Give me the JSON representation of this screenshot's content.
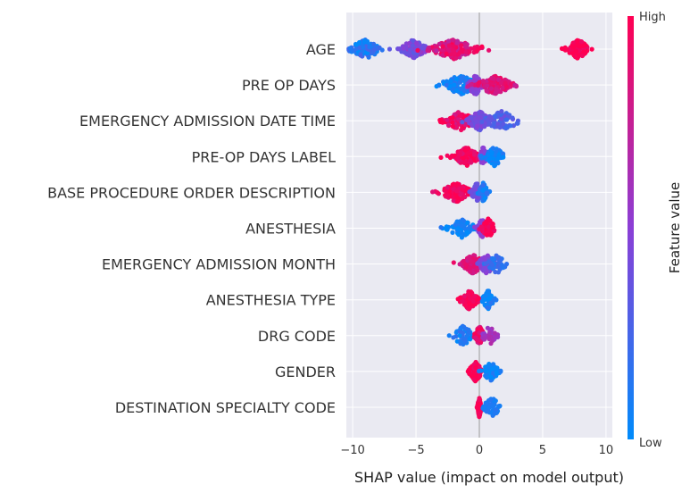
{
  "chart_data": {
    "type": "scatter",
    "subtype": "shap-beeswarm",
    "xlabel": "SHAP value (impact on model output)",
    "xlim": [
      -10.5,
      10.5
    ],
    "xticks": [
      -10,
      -5,
      0,
      5,
      10
    ],
    "grid": true,
    "colorbar": {
      "title": "Feature value",
      "high_label": "High",
      "low_label": "Low",
      "high_color": "#ff0052",
      "mid_color": "#8b3fd6",
      "low_color": "#008bfb"
    },
    "background_color": "#eaeaf2",
    "features": [
      {
        "name": "AGE",
        "clusters": [
          {
            "center": -9.0,
            "width": 1.4,
            "count": 110,
            "color": 0.12,
            "spread": 0.3
          },
          {
            "center": -5.2,
            "width": 1.2,
            "count": 110,
            "color": 0.45,
            "spread": 0.25
          },
          {
            "center": -2.0,
            "width": 2.2,
            "count": 150,
            "color": 0.85,
            "spread": 0.3
          },
          {
            "center": 0.2,
            "width": 0.6,
            "count": 2,
            "color": 1.0,
            "spread": 0.15
          },
          {
            "center": 7.8,
            "width": 1.0,
            "count": 120,
            "color": 1.0,
            "spread": 0.2
          }
        ]
      },
      {
        "name": "PRE OP DAYS",
        "clusters": [
          {
            "center": -1.5,
            "width": 1.8,
            "count": 110,
            "color": 0.05,
            "spread": 0.2
          },
          {
            "center": -0.3,
            "width": 0.8,
            "count": 80,
            "color": 0.5,
            "spread": 0.1
          },
          {
            "center": 1.2,
            "width": 1.6,
            "count": 120,
            "color": 0.85,
            "spread": 0.2
          }
        ]
      },
      {
        "name": "EMERGENCY ADMISSION DATE TIME",
        "clusters": [
          {
            "center": -1.5,
            "width": 1.6,
            "count": 100,
            "color": 0.92,
            "spread": 0.3
          },
          {
            "center": 0.0,
            "width": 1.0,
            "count": 100,
            "color": 0.4,
            "spread": 0.2
          },
          {
            "center": 1.8,
            "width": 1.6,
            "count": 60,
            "color": 0.3,
            "spread": 0.2
          }
        ]
      },
      {
        "name": "PRE-OP DAYS LABEL",
        "clusters": [
          {
            "center": -1.0,
            "width": 1.2,
            "count": 120,
            "color": 0.95,
            "spread": 0.2
          },
          {
            "center": 0.3,
            "width": 0.3,
            "count": 60,
            "color": 0.5,
            "spread": 0.1
          },
          {
            "center": 1.2,
            "width": 0.9,
            "count": 70,
            "color": 0.05,
            "spread": 0.2
          }
        ]
      },
      {
        "name": "BASE PROCEDURE ORDER DESCRIPTION",
        "clusters": [
          {
            "center": -1.8,
            "width": 1.4,
            "count": 110,
            "color": 0.95,
            "spread": 0.2
          },
          {
            "center": -0.2,
            "width": 0.5,
            "count": 70,
            "color": 0.4,
            "spread": 0.1
          },
          {
            "center": 0.3,
            "width": 0.4,
            "count": 50,
            "color": 0.1,
            "spread": 0.2
          }
        ]
      },
      {
        "name": "ANESTHESIA",
        "clusters": [
          {
            "center": -1.4,
            "width": 1.4,
            "count": 70,
            "color": 0.05,
            "spread": 0.2
          },
          {
            "center": 0.2,
            "width": 0.4,
            "count": 60,
            "color": 0.5,
            "spread": 0.1
          },
          {
            "center": 0.7,
            "width": 0.6,
            "count": 80,
            "color": 0.98,
            "spread": 0.2
          }
        ]
      },
      {
        "name": "EMERGENCY ADMISSION MONTH",
        "clusters": [
          {
            "center": -0.5,
            "width": 1.0,
            "count": 140,
            "color": 0.85,
            "spread": 0.2
          },
          {
            "center": 0.6,
            "width": 0.8,
            "count": 80,
            "color": 0.45,
            "spread": 0.2
          },
          {
            "center": 1.4,
            "width": 0.8,
            "count": 40,
            "color": 0.15,
            "spread": 0.2
          }
        ]
      },
      {
        "name": "ANESTHESIA TYPE",
        "clusters": [
          {
            "center": -0.8,
            "width": 0.8,
            "count": 110,
            "color": 0.98,
            "spread": 0.2
          },
          {
            "center": 0.7,
            "width": 0.5,
            "count": 70,
            "color": 0.05,
            "spread": 0.2
          }
        ]
      },
      {
        "name": "DRG CODE",
        "clusters": [
          {
            "center": -1.3,
            "width": 1.2,
            "count": 50,
            "color": 0.1,
            "spread": 0.2
          },
          {
            "center": 0.0,
            "width": 0.4,
            "count": 100,
            "color": 0.9,
            "spread": 0.2
          },
          {
            "center": 0.8,
            "width": 0.6,
            "count": 40,
            "color": 0.6,
            "spread": 0.2
          }
        ]
      },
      {
        "name": "GENDER",
        "clusters": [
          {
            "center": -0.3,
            "width": 0.6,
            "count": 130,
            "color": 0.98,
            "spread": 0.2
          },
          {
            "center": 0.9,
            "width": 0.7,
            "count": 90,
            "color": 0.05,
            "spread": 0.2
          }
        ]
      },
      {
        "name": "DESTINATION SPECIALTY CODE",
        "clusters": [
          {
            "center": 0.0,
            "width": 0.15,
            "count": 140,
            "color": 0.98,
            "spread": 0.15
          },
          {
            "center": 1.0,
            "width": 0.8,
            "count": 60,
            "color": 0.1,
            "spread": 0.1
          }
        ]
      }
    ]
  }
}
